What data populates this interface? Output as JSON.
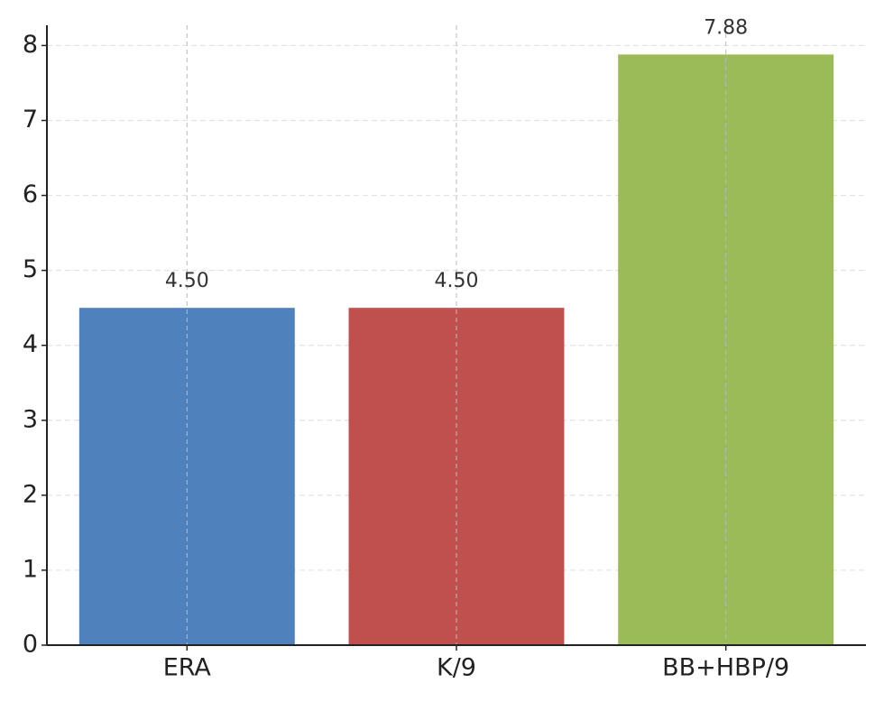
{
  "chart_data": {
    "type": "bar",
    "categories": [
      "ERA",
      "K/9",
      "BB+HBP/9"
    ],
    "values": [
      4.5,
      4.5,
      7.88
    ],
    "value_labels": [
      "4.50",
      "4.50",
      "7.88"
    ],
    "colors": [
      "#4f81bd",
      "#c0504d",
      "#9bbb59"
    ],
    "ylim": [
      0,
      8.27
    ],
    "yticks": [
      0,
      1,
      2,
      3,
      4,
      5,
      6,
      7,
      8
    ],
    "grid": true
  }
}
